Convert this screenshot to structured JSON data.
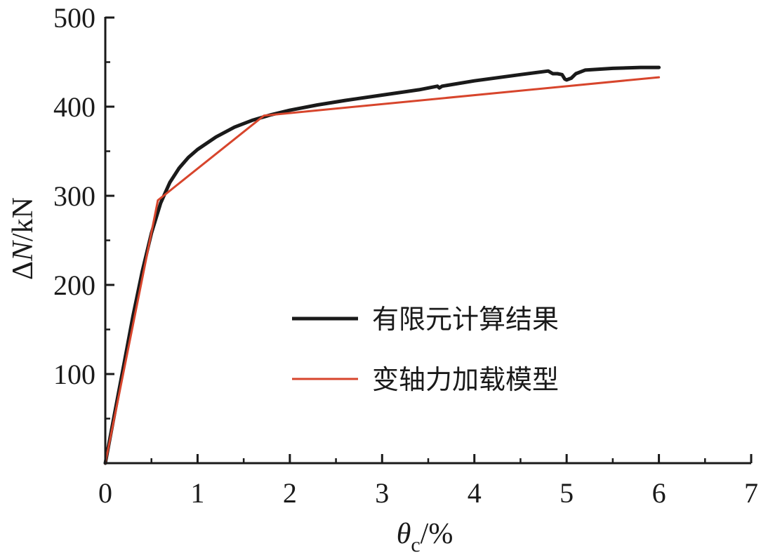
{
  "chart_data": {
    "type": "line",
    "xlabel": "θc/%",
    "xlabel_main": "θ",
    "xlabel_sub": "c",
    "xlabel_suffix": "/%",
    "ylabel": "ΔN/kN",
    "ylabel_delta": "Δ",
    "ylabel_var": "N",
    "ylabel_unit": "/kN",
    "xlim": [
      0,
      7
    ],
    "ylim": [
      0,
      500
    ],
    "x_ticks": [
      "0",
      "1",
      "2",
      "3",
      "4",
      "5",
      "6",
      "7"
    ],
    "y_ticks": [
      "100",
      "200",
      "300",
      "400",
      "500"
    ],
    "grid": false,
    "legend_position": "center-right",
    "series": [
      {
        "name": "有限元计算结果",
        "color": "#1a1a1a",
        "points": [
          [
            0,
            0
          ],
          [
            0.1,
            55
          ],
          [
            0.2,
            110
          ],
          [
            0.3,
            165
          ],
          [
            0.4,
            215
          ],
          [
            0.5,
            258
          ],
          [
            0.6,
            292
          ],
          [
            0.7,
            315
          ],
          [
            0.8,
            331
          ],
          [
            0.9,
            343
          ],
          [
            1.0,
            352
          ],
          [
            1.2,
            366
          ],
          [
            1.4,
            377
          ],
          [
            1.6,
            385
          ],
          [
            1.8,
            391
          ],
          [
            2.0,
            396
          ],
          [
            2.3,
            402
          ],
          [
            2.6,
            407
          ],
          [
            3.0,
            413
          ],
          [
            3.4,
            419
          ],
          [
            3.6,
            423
          ],
          [
            3.62,
            421
          ],
          [
            3.65,
            423
          ],
          [
            4.0,
            429
          ],
          [
            4.5,
            436
          ],
          [
            4.8,
            440
          ],
          [
            4.85,
            437
          ],
          [
            4.9,
            437
          ],
          [
            4.95,
            436
          ],
          [
            4.98,
            431
          ],
          [
            5.0,
            430
          ],
          [
            5.05,
            432
          ],
          [
            5.1,
            437
          ],
          [
            5.2,
            441
          ],
          [
            5.5,
            443
          ],
          [
            5.8,
            444
          ],
          [
            6.0,
            444
          ]
        ]
      },
      {
        "name": "变轴力加载模型",
        "color": "#d7452c",
        "points": [
          [
            0,
            0
          ],
          [
            0.57,
            295
          ],
          [
            1.72,
            390
          ],
          [
            6.0,
            433
          ]
        ]
      }
    ]
  }
}
